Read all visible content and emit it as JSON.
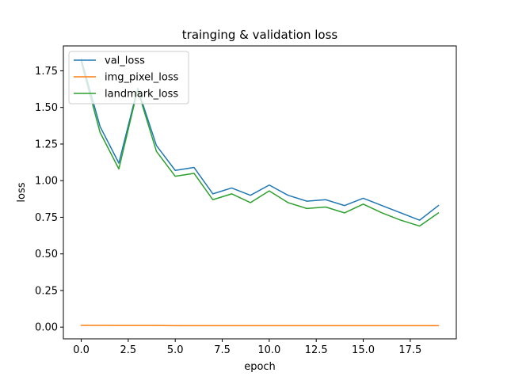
{
  "chart_data": {
    "type": "line",
    "title": "trainging & validation loss",
    "xlabel": "epoch",
    "ylabel": "loss",
    "xlim": [
      -0.95,
      19.95
    ],
    "ylim": [
      -0.08,
      1.92
    ],
    "xticks": [
      0.0,
      2.5,
      5.0,
      7.5,
      10.0,
      12.5,
      15.0,
      17.5
    ],
    "xtick_labels": [
      "0.0",
      "2.5",
      "5.0",
      "7.5",
      "10.0",
      "12.5",
      "15.0",
      "17.5"
    ],
    "yticks": [
      0.0,
      0.25,
      0.5,
      0.75,
      1.0,
      1.25,
      1.5,
      1.75
    ],
    "ytick_labels": [
      "0.00",
      "0.25",
      "0.50",
      "0.75",
      "1.00",
      "1.25",
      "1.50",
      "1.75"
    ],
    "grid": false,
    "legend_position": "top-left",
    "x": [
      0,
      1,
      2,
      3,
      4,
      5,
      6,
      7,
      8,
      9,
      10,
      11,
      12,
      13,
      14,
      15,
      16,
      17,
      18,
      19
    ],
    "series": [
      {
        "name": "val_loss",
        "color": "#1f77b4",
        "values": [
          1.83,
          1.37,
          1.12,
          1.63,
          1.24,
          1.07,
          1.09,
          0.91,
          0.95,
          0.9,
          0.97,
          0.9,
          0.86,
          0.87,
          0.83,
          0.88,
          0.83,
          0.78,
          0.73,
          0.83
        ]
      },
      {
        "name": "img_pixel_loss",
        "color": "#ff7f0e",
        "values": [
          0.012,
          0.012,
          0.011,
          0.011,
          0.011,
          0.01,
          0.01,
          0.01,
          0.01,
          0.01,
          0.01,
          0.01,
          0.01,
          0.01,
          0.01,
          0.01,
          0.01,
          0.01,
          0.01,
          0.01
        ]
      },
      {
        "name": "landmark_loss",
        "color": "#2ca02c",
        "values": [
          1.81,
          1.33,
          1.08,
          1.62,
          1.2,
          1.03,
          1.05,
          0.87,
          0.91,
          0.85,
          0.93,
          0.85,
          0.81,
          0.82,
          0.78,
          0.84,
          0.78,
          0.73,
          0.69,
          0.78
        ]
      }
    ]
  }
}
